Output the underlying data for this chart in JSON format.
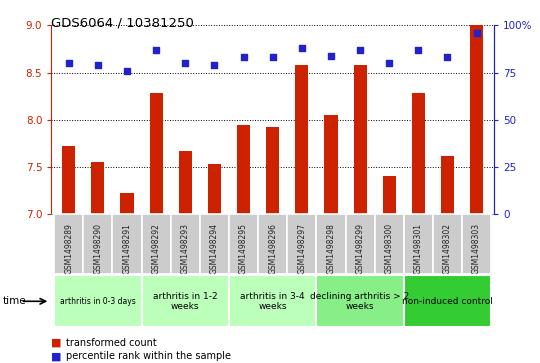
{
  "title": "GDS6064 / 10381250",
  "samples": [
    "GSM1498289",
    "GSM1498290",
    "GSM1498291",
    "GSM1498292",
    "GSM1498293",
    "GSM1498294",
    "GSM1498295",
    "GSM1498296",
    "GSM1498297",
    "GSM1498298",
    "GSM1498299",
    "GSM1498300",
    "GSM1498301",
    "GSM1498302",
    "GSM1498303"
  ],
  "bar_values": [
    7.72,
    7.55,
    7.22,
    8.28,
    7.67,
    7.53,
    7.95,
    7.92,
    8.58,
    8.05,
    8.58,
    7.4,
    8.28,
    7.62,
    9.0
  ],
  "dot_values": [
    80,
    79,
    76,
    87,
    80,
    79,
    83,
    83,
    88,
    84,
    87,
    80,
    87,
    83,
    96
  ],
  "bar_color": "#cc2200",
  "dot_color": "#2222cc",
  "ylim_left": [
    7.0,
    9.0
  ],
  "ylim_right": [
    0,
    100
  ],
  "yticks_left": [
    7.0,
    7.5,
    8.0,
    8.5,
    9.0
  ],
  "yticks_right": [
    0,
    25,
    50,
    75,
    100
  ],
  "ytick_labels_right": [
    "0",
    "25",
    "50",
    "75",
    "100%"
  ],
  "groups": [
    {
      "label": "arthritis in 0-3 days",
      "start": 0,
      "end": 3,
      "color": "#bbffbb",
      "small": true
    },
    {
      "label": "arthritis in 1-2\nweeks",
      "start": 3,
      "end": 6,
      "color": "#bbffbb",
      "small": false
    },
    {
      "label": "arthritis in 3-4\nweeks",
      "start": 6,
      "end": 9,
      "color": "#bbffbb",
      "small": false
    },
    {
      "label": "declining arthritis > 2\nweeks",
      "start": 9,
      "end": 12,
      "color": "#88ee88",
      "small": false
    },
    {
      "label": "non-induced control",
      "start": 12,
      "end": 15,
      "color": "#33cc33",
      "small": false
    }
  ],
  "sample_box_color": "#cccccc",
  "tick_label_color": "#222222",
  "bar_width": 0.45,
  "xlabel_time": "time"
}
